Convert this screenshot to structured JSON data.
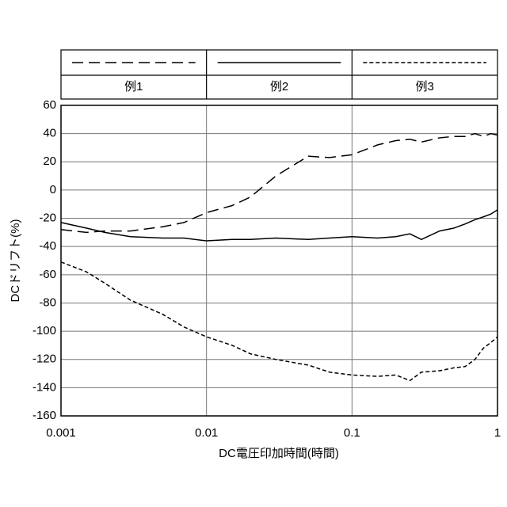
{
  "chart_data": {
    "type": "line",
    "x_label": "DC電圧印加時間(時間)",
    "y_label": "DCドリフト(%)",
    "xscale": "log",
    "grid": true,
    "x": [
      0.001,
      0.0015,
      0.002,
      0.003,
      0.005,
      0.007,
      0.01,
      0.015,
      0.02,
      0.03,
      0.05,
      0.07,
      0.1,
      0.15,
      0.2,
      0.25,
      0.3,
      0.4,
      0.5,
      0.6,
      0.7,
      0.8,
      0.9,
      1
    ],
    "series": [
      {
        "name": "例1",
        "color": "#000000",
        "style": "dashed",
        "values": [
          -28,
          -30,
          -29,
          -29,
          -26,
          -23,
          -16,
          -11,
          -5,
          10,
          24,
          23,
          25,
          32,
          35,
          36,
          34,
          37,
          38,
          38,
          40,
          38,
          40,
          39
        ]
      },
      {
        "name": "例2",
        "color": "#000000",
        "style": "solid",
        "values": [
          -23,
          -27,
          -30,
          -33,
          -34,
          -34,
          -36,
          -35,
          -35,
          -34,
          -35,
          -34,
          -33,
          -34,
          -33,
          -31,
          -35,
          -29,
          -27,
          -24,
          -21,
          -19,
          -17,
          -14
        ]
      },
      {
        "name": "例3",
        "color": "#000000",
        "style": "dotted",
        "values": [
          -51,
          -58,
          -66,
          -78,
          -88,
          -97,
          -104,
          -110,
          -116,
          -120,
          -124,
          -129,
          -131,
          -132,
          -131,
          -135,
          -129,
          -128,
          -126,
          -125,
          -120,
          -112,
          -108,
          -104
        ]
      }
    ],
    "xlim": [
      0.001,
      1
    ],
    "xticks": [
      0.001,
      0.01,
      0.1,
      1
    ],
    "ylim": [
      -160,
      60
    ],
    "yticks": [
      -160,
      -140,
      -120,
      -100,
      -80,
      -60,
      -40,
      -20,
      0,
      20,
      40,
      60
    ]
  }
}
